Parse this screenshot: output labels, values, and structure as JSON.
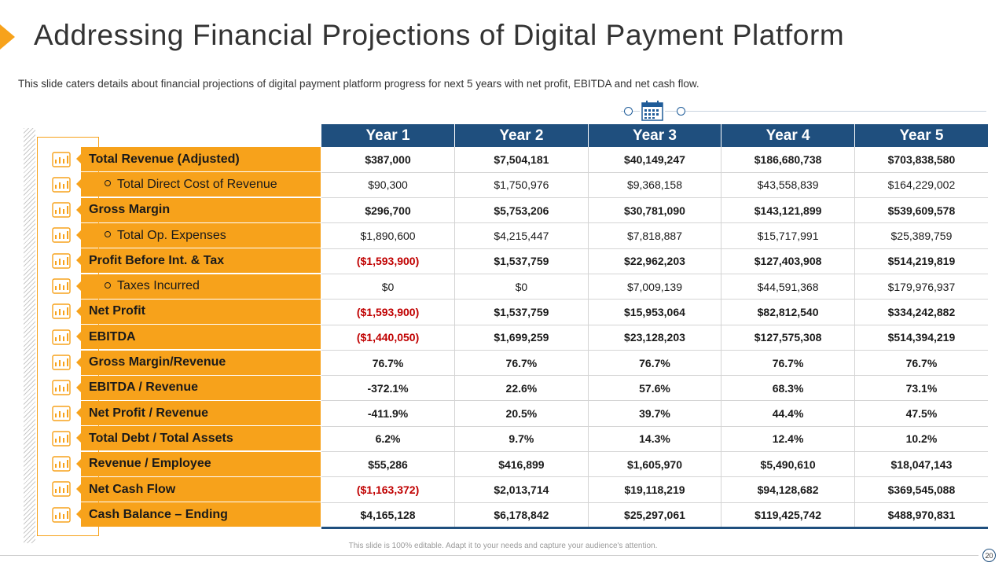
{
  "title": "Addressing Financial Projections of Digital Payment Platform",
  "subtitle": "This slide caters details about financial projections of digital payment platform progress for next 5 years with net profit, EBITDA and net cash flow.",
  "columns": [
    "Year 1",
    "Year 2",
    "Year 3",
    "Year 4",
    "Year 5"
  ],
  "rows": [
    {
      "label": "Total Revenue (Adjusted)",
      "values": [
        "$387,000",
        "$7,504,181",
        "$40,149,247",
        "$186,680,738",
        "$703,838,580"
      ],
      "icon": "revenue-chart-icon"
    },
    {
      "label": "Total Direct Cost of Revenue",
      "values": [
        "$90,300",
        "$1,750,976",
        "$9,368,158",
        "$43,558,839",
        "$164,229,002"
      ],
      "icon": "cost-icon"
    },
    {
      "label": "Gross Margin",
      "values": [
        "$296,700",
        "$5,753,206",
        "$30,781,090",
        "$143,121,899",
        "$539,609,578"
      ],
      "icon": "bar-chart-icon"
    },
    {
      "label": "Total Op. Expenses",
      "values": [
        "$1,890,600",
        "$4,215,447",
        "$7,818,887",
        "$15,717,991",
        "$25,389,759"
      ],
      "icon": "expense-icon"
    },
    {
      "label": "Profit Before Int. & Tax",
      "values": [
        "($1,593,900)",
        "$1,537,759",
        "$22,962,203",
        "$127,403,908",
        "$514,219,819"
      ],
      "icon": "profit-icon"
    },
    {
      "label": "Taxes Incurred",
      "values": [
        "$0",
        "$0",
        "$7,009,139",
        "$44,591,368",
        "$179,976,937"
      ],
      "icon": "tax-document-icon"
    },
    {
      "label": "Net Profit",
      "values": [
        "($1,593,900)",
        "$1,537,759",
        "$15,953,064",
        "$82,812,540",
        "$334,242,882"
      ],
      "icon": "coins-icon"
    },
    {
      "label": "EBITDA",
      "values": [
        "($1,440,050)",
        "$1,699,259",
        "$23,128,203",
        "$127,575,308",
        "$514,394,219"
      ],
      "icon": "growth-chart-icon"
    },
    {
      "label": "Gross Margin/Revenue",
      "values": [
        "76.7%",
        "76.7%",
        "76.7%",
        "76.7%",
        "76.7%"
      ],
      "icon": "hand-coin-icon"
    },
    {
      "label": "EBITDA / Revenue",
      "values": [
        "-372.1%",
        "22.6%",
        "57.6%",
        "68.3%",
        "73.1%"
      ],
      "icon": "chart-coins-icon"
    },
    {
      "label": "Net Profit / Revenue",
      "values": [
        "-411.9%",
        "20.5%",
        "39.7%",
        "44.4%",
        "47.5%"
      ],
      "icon": "money-stack-icon"
    },
    {
      "label": "Total Debt / Total Assets",
      "values": [
        "6.2%",
        "9.7%",
        "14.3%",
        "12.4%",
        "10.2%"
      ],
      "icon": "assets-icon"
    },
    {
      "label": "Revenue / Employee",
      "values": [
        "$55,286",
        "$416,899",
        "$1,605,970",
        "$5,490,610",
        "$18,047,143"
      ],
      "icon": "employee-icon"
    },
    {
      "label": "Net Cash Flow",
      "values": [
        "($1,163,372)",
        "$2,013,714",
        "$19,118,219",
        "$94,128,682",
        "$369,545,088"
      ],
      "icon": "cash-flow-icon"
    },
    {
      "label": "Cash Balance – Ending",
      "values": [
        "$4,165,128",
        "$6,178,842",
        "$25,297,061",
        "$119,425,742",
        "$488,970,831"
      ],
      "icon": "cash-register-icon"
    }
  ],
  "footer": "This slide is 100% editable. Adapt it to your needs and capture your audience's attention.",
  "page_number": "20",
  "colors": {
    "accent": "#f7a21b",
    "header": "#1f4f7e",
    "negative": "#c00000"
  }
}
